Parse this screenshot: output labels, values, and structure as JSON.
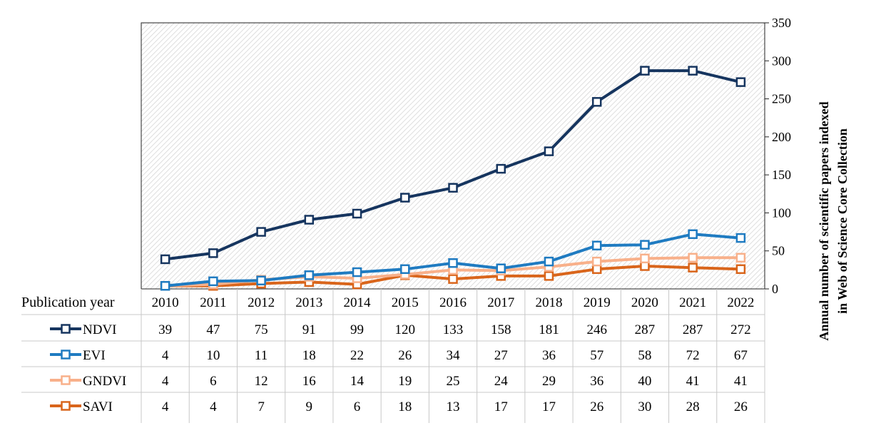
{
  "chart_data": {
    "type": "line",
    "x_label": "Publication year",
    "categories": [
      "2010",
      "2011",
      "2012",
      "2013",
      "2014",
      "2015",
      "2016",
      "2017",
      "2018",
      "2019",
      "2020",
      "2021",
      "2022"
    ],
    "y_axis": {
      "label_line1": "Annual number of scientific papers indexed",
      "label_line2": "in Web of Science Core Collection",
      "ylim": [
        0,
        350
      ],
      "ticks": [
        "0",
        "50",
        "100",
        "150",
        "200",
        "250",
        "300",
        "350"
      ],
      "position": "right"
    },
    "grid": false,
    "series": [
      {
        "name": "NDVI",
        "color": "#16355f",
        "values": [
          39,
          47,
          75,
          91,
          99,
          120,
          133,
          158,
          181,
          246,
          287,
          287,
          272
        ]
      },
      {
        "name": "EVI",
        "color": "#1f7bc1",
        "values": [
          4,
          10,
          11,
          18,
          22,
          26,
          34,
          27,
          36,
          57,
          58,
          72,
          67
        ]
      },
      {
        "name": "GNDVI",
        "color": "#f8b08a",
        "values": [
          4,
          6,
          12,
          16,
          14,
          19,
          25,
          24,
          29,
          36,
          40,
          41,
          41
        ]
      },
      {
        "name": "SAVI",
        "color": "#d9651b",
        "values": [
          4,
          4,
          7,
          9,
          6,
          18,
          13,
          17,
          17,
          26,
          30,
          28,
          26
        ]
      }
    ],
    "legend": "data table below plot",
    "marker": "open-square"
  }
}
